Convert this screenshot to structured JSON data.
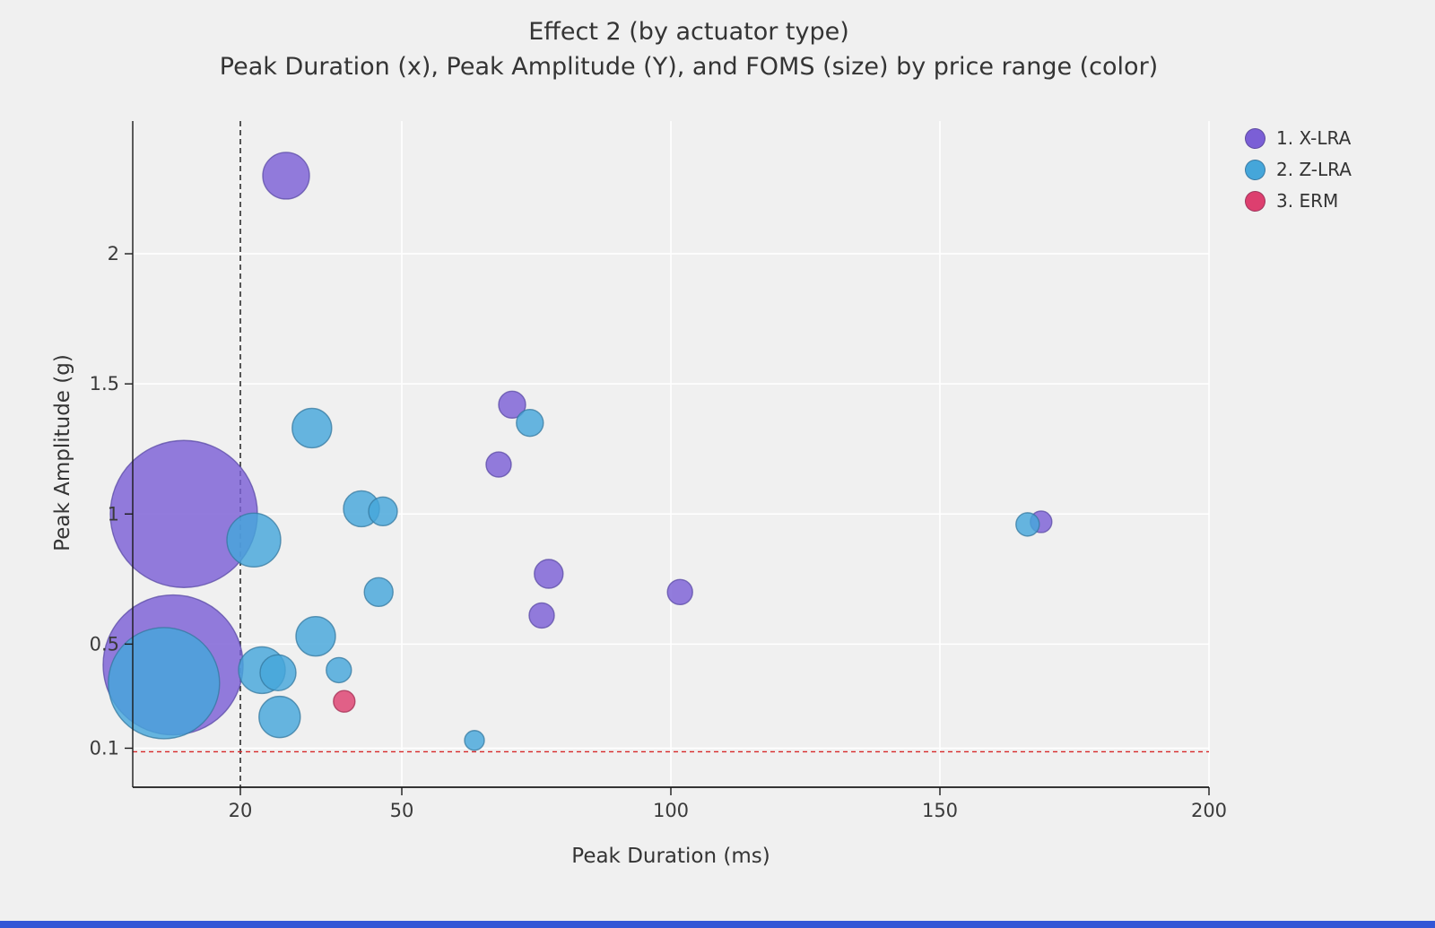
{
  "title": "Effect 2 (by actuator type)",
  "subtitle": "Peak Duration (x), Peak Amplitude (Y), and FOMS (size) by price range (color)",
  "colors": {
    "background": "#f0f0f0",
    "grid": "#ffffff",
    "spine": "#1a1a1a",
    "tick_label": "#3a3a3a",
    "vline": "#111111",
    "hline": "#d62728",
    "bottom_strip": "#3356d6"
  },
  "legend": {
    "items": [
      {
        "label": "1. X-LRA",
        "color": "#7b5fd6"
      },
      {
        "label": "2. Z-LRA",
        "color": "#45a6da"
      },
      {
        "label": "3. ERM",
        "color": "#dd3f6f"
      }
    ]
  },
  "chart_data": {
    "type": "scatter",
    "title": "Effect 2 (by actuator type)",
    "subtitle": "Peak Duration (x), Peak Amplitude (Y), and FOMS (size) by price range (color)",
    "xlabel": "Peak Duration (ms)",
    "ylabel": "Peak Amplitude (g)",
    "xlim": [
      0,
      200
    ],
    "ylim": [
      -0.05,
      2.51
    ],
    "x_ticks": [
      "20",
      "50",
      "100",
      "150",
      "200"
    ],
    "x_tick_values": [
      20,
      50,
      100,
      150,
      200
    ],
    "y_ticks": [
      "0.1",
      "0.5",
      "1",
      "1.5",
      "2"
    ],
    "y_tick_values": [
      0.1,
      0.5,
      1,
      1.5,
      2
    ],
    "grid": true,
    "legend_position": "upper right",
    "reference_lines": {
      "vertical_x": 20,
      "horizontal_y": 0.1
    },
    "size_legend_note": "bubble size = FOMS",
    "series": [
      {
        "name": "1. X-LRA",
        "color": "#7b5fd6",
        "stroke": "#5a4aa5",
        "points": [
          {
            "x": 28.5,
            "y": 2.3,
            "r": 26
          },
          {
            "x": 9.5,
            "y": 1.0,
            "r": 82
          },
          {
            "x": 7.5,
            "y": 0.42,
            "r": 78
          },
          {
            "x": 70.5,
            "y": 1.42,
            "r": 15
          },
          {
            "x": 68.0,
            "y": 1.19,
            "r": 14
          },
          {
            "x": 77.3,
            "y": 0.77,
            "r": 16
          },
          {
            "x": 76.0,
            "y": 0.61,
            "r": 14
          },
          {
            "x": 101.7,
            "y": 0.7,
            "r": 14
          },
          {
            "x": 168.8,
            "y": 0.97,
            "r": 12
          }
        ]
      },
      {
        "name": "2. Z-LRA",
        "color": "#45a6da",
        "stroke": "#34789f",
        "points": [
          {
            "x": 33.3,
            "y": 1.33,
            "r": 22
          },
          {
            "x": 73.8,
            "y": 1.35,
            "r": 15
          },
          {
            "x": 42.5,
            "y": 1.02,
            "r": 20
          },
          {
            "x": 46.5,
            "y": 1.01,
            "r": 16
          },
          {
            "x": 22.5,
            "y": 0.9,
            "r": 30
          },
          {
            "x": 45.7,
            "y": 0.7,
            "r": 16
          },
          {
            "x": 34.0,
            "y": 0.53,
            "r": 22
          },
          {
            "x": 24.0,
            "y": 0.4,
            "r": 26
          },
          {
            "x": 27.0,
            "y": 0.39,
            "r": 20
          },
          {
            "x": 38.3,
            "y": 0.4,
            "r": 14
          },
          {
            "x": 5.8,
            "y": 0.35,
            "r": 62
          },
          {
            "x": 27.3,
            "y": 0.22,
            "r": 23
          },
          {
            "x": 63.5,
            "y": 0.13,
            "r": 11
          },
          {
            "x": 166.3,
            "y": 0.96,
            "r": 13
          }
        ]
      },
      {
        "name": "3. ERM",
        "color": "#dd3f6f",
        "stroke": "#a32c51",
        "points": [
          {
            "x": 39.3,
            "y": 0.28,
            "r": 12
          }
        ]
      }
    ]
  }
}
